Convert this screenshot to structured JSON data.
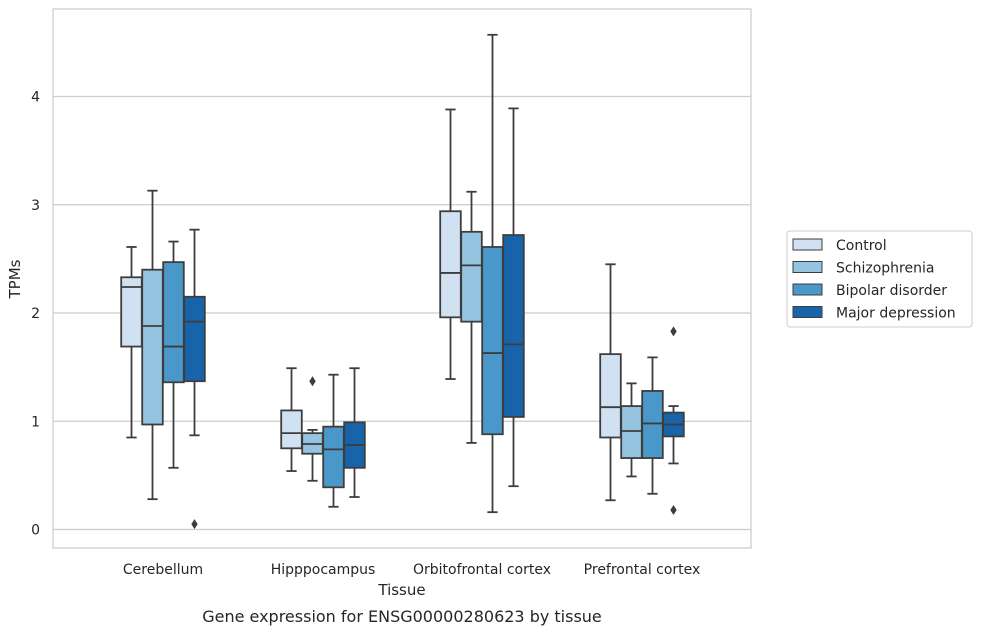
{
  "chart_data": {
    "type": "box",
    "caption": "Gene expression for ENSG00000280623 by tissue",
    "xlabel": "Tissue",
    "ylabel": "TPMs",
    "ylim": [
      -0.17,
      4.8
    ],
    "yticks": [
      0,
      1,
      2,
      3,
      4
    ],
    "grid": true,
    "legend_position": "right",
    "categories": [
      "Cerebellum",
      "Hipppocampus",
      "Orbitofrontal cortex",
      "Prefrontal cortex"
    ],
    "series": [
      {
        "name": "Control",
        "color": "#d0e1f2",
        "boxes": [
          {
            "min": 0.85,
            "q1": 1.69,
            "median": 2.24,
            "q3": 2.33,
            "max": 2.61,
            "outliers": []
          },
          {
            "min": 0.54,
            "q1": 0.75,
            "median": 0.89,
            "q3": 1.1,
            "max": 1.49,
            "outliers": []
          },
          {
            "min": 1.39,
            "q1": 1.96,
            "median": 2.37,
            "q3": 2.94,
            "max": 3.88,
            "outliers": []
          },
          {
            "min": 0.27,
            "q1": 0.85,
            "median": 1.13,
            "q3": 1.62,
            "max": 2.45,
            "outliers": []
          }
        ]
      },
      {
        "name": "Schizophrenia",
        "color": "#94c4df",
        "boxes": [
          {
            "min": 0.28,
            "q1": 0.97,
            "median": 1.88,
            "q3": 2.4,
            "max": 3.13,
            "outliers": []
          },
          {
            "min": 0.45,
            "q1": 0.7,
            "median": 0.79,
            "q3": 0.89,
            "max": 0.92,
            "outliers": [
              1.37
            ]
          },
          {
            "min": 0.8,
            "q1": 1.92,
            "median": 2.44,
            "q3": 2.75,
            "max": 3.12,
            "outliers": []
          },
          {
            "min": 0.49,
            "q1": 0.66,
            "median": 0.91,
            "q3": 1.14,
            "max": 1.35,
            "outliers": []
          }
        ]
      },
      {
        "name": "Bipolar disorder",
        "color": "#4a98c9",
        "boxes": [
          {
            "min": 0.57,
            "q1": 1.36,
            "median": 1.69,
            "q3": 2.47,
            "max": 2.66,
            "outliers": []
          },
          {
            "min": 0.21,
            "q1": 0.39,
            "median": 0.74,
            "q3": 0.95,
            "max": 1.43,
            "outliers": []
          },
          {
            "min": 0.16,
            "q1": 0.88,
            "median": 1.63,
            "q3": 2.61,
            "max": 4.57,
            "outliers": []
          },
          {
            "min": 0.33,
            "q1": 0.66,
            "median": 0.98,
            "q3": 1.28,
            "max": 1.59,
            "outliers": []
          }
        ]
      },
      {
        "name": "Major depression",
        "color": "#1764ab",
        "boxes": [
          {
            "min": 0.87,
            "q1": 1.37,
            "median": 1.92,
            "q3": 2.15,
            "max": 2.77,
            "outliers": [
              0.05
            ]
          },
          {
            "min": 0.3,
            "q1": 0.57,
            "median": 0.78,
            "q3": 0.99,
            "max": 1.49,
            "outliers": []
          },
          {
            "min": 0.4,
            "q1": 1.04,
            "median": 1.71,
            "q3": 2.72,
            "max": 3.89,
            "outliers": []
          },
          {
            "min": 0.61,
            "q1": 0.86,
            "median": 0.97,
            "q3": 1.08,
            "max": 1.14,
            "outliers": [
              1.83,
              0.18
            ]
          }
        ]
      }
    ]
  }
}
